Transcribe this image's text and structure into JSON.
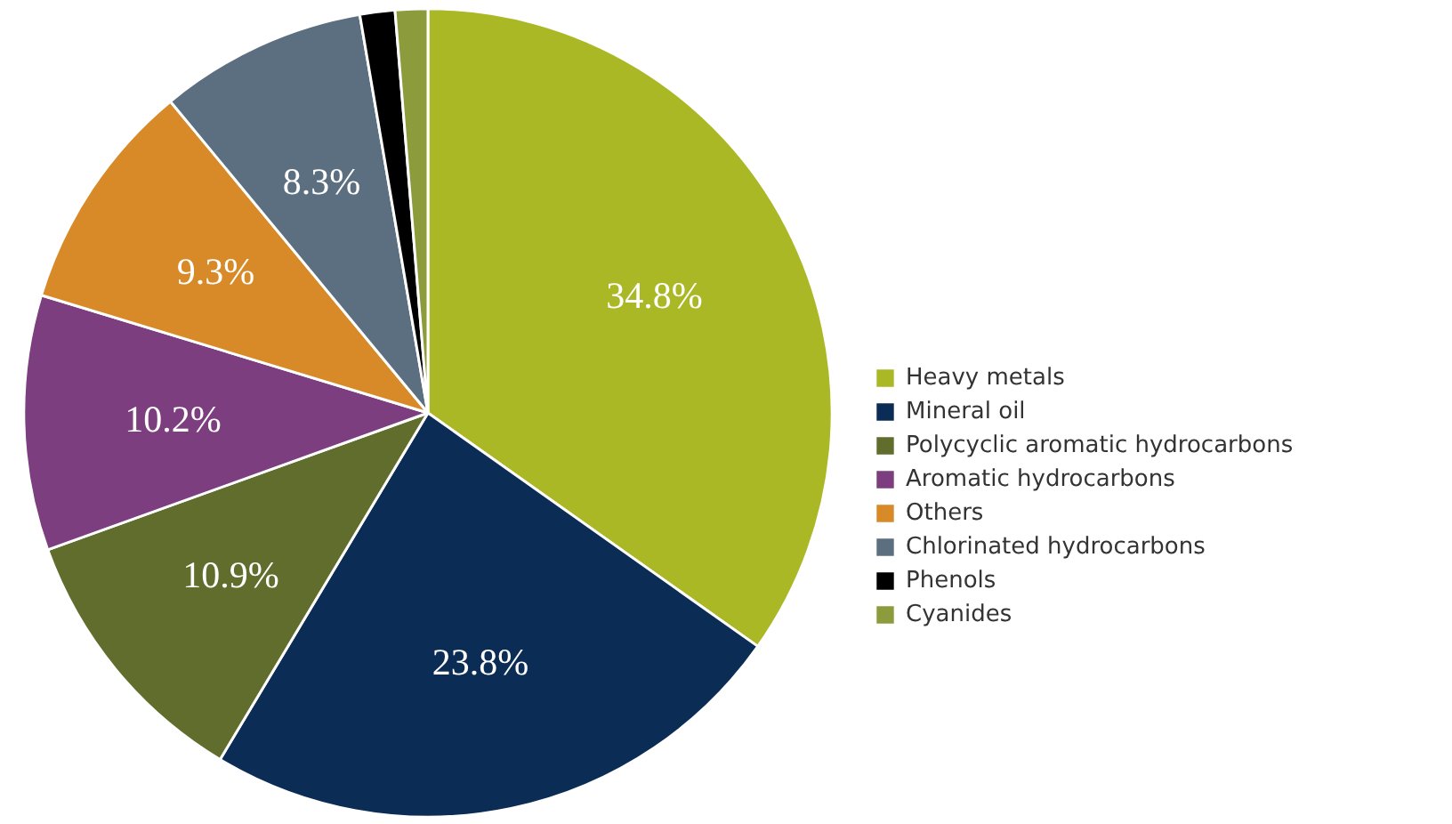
{
  "chart_data": {
    "type": "pie",
    "categories": [
      "Heavy metals",
      "Mineral oil",
      "Polycyclic aromatic hydrocarbons",
      "Aromatic hydrocarbons",
      "Others",
      "Chlorinated hydrocarbons",
      "Phenols",
      "Cyanides"
    ],
    "values": [
      34.8,
      23.8,
      10.9,
      10.2,
      9.3,
      8.3,
      1.4,
      1.3
    ],
    "colors": [
      "#abb825",
      "#0b2c55",
      "#606d2c",
      "#7c3e7e",
      "#d88a28",
      "#5c6f80",
      "#000000",
      "#8c9c3c"
    ],
    "value_labels": [
      "34.8%",
      "23.8%",
      "10.9%",
      "10.2%",
      "9.3%",
      "8.3%",
      null,
      null
    ],
    "legend": "right"
  }
}
